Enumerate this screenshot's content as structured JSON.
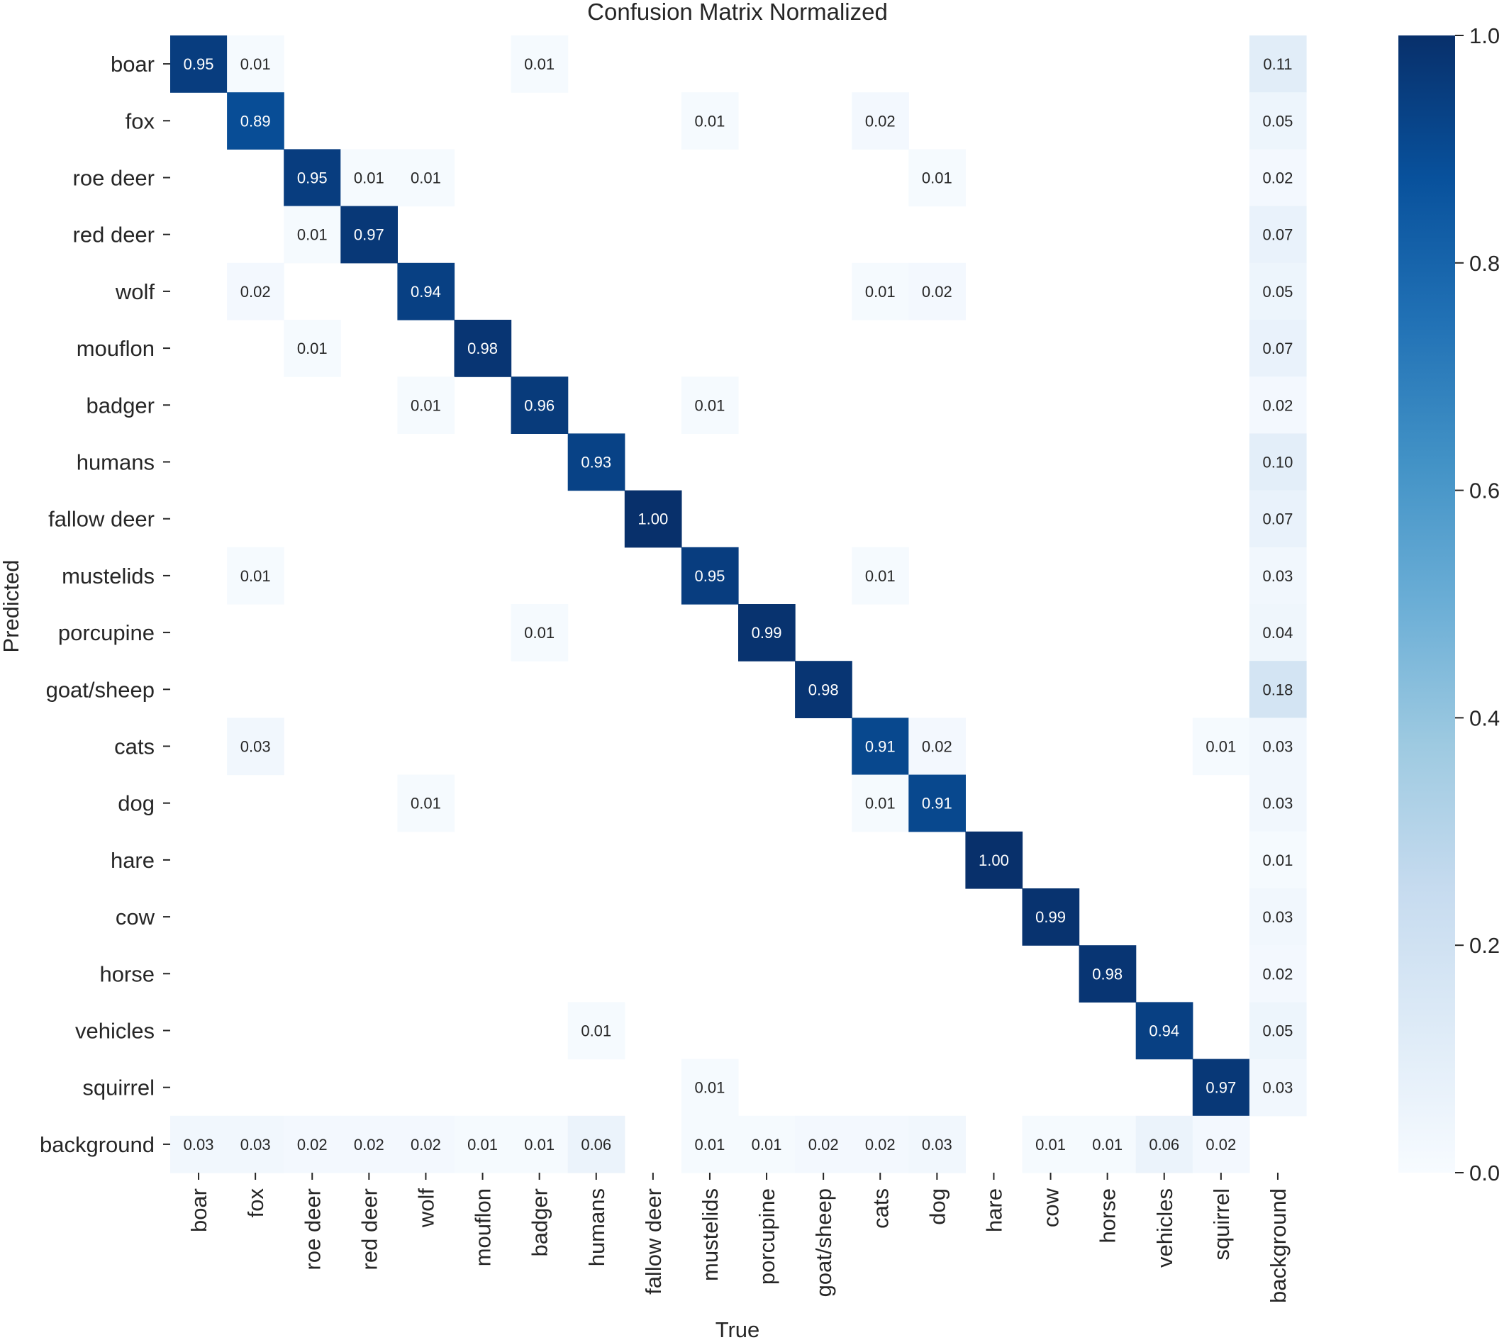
{
  "chart_data": {
    "type": "heatmap",
    "title": "Confusion Matrix Normalized",
    "xlabel": "True",
    "ylabel": "Predicted",
    "row_labels": [
      "boar",
      "fox",
      "roe deer",
      "red deer",
      "wolf",
      "mouflon",
      "badger",
      "humans",
      "fallow deer",
      "mustelids",
      "porcupine",
      "goat/sheep",
      "cats",
      "dog",
      "hare",
      "cow",
      "horse",
      "vehicles",
      "squirrel",
      "background"
    ],
    "col_labels": [
      "boar",
      "fox",
      "roe deer",
      "red deer",
      "wolf",
      "mouflon",
      "badger",
      "humans",
      "fallow deer",
      "mustelids",
      "porcupine",
      "goat/sheep",
      "cats",
      "dog",
      "hare",
      "cow",
      "horse",
      "vehicles",
      "squirrel",
      "background"
    ],
    "values": [
      [
        0.95,
        0.01,
        null,
        null,
        null,
        null,
        0.01,
        null,
        null,
        null,
        null,
        null,
        null,
        null,
        null,
        null,
        null,
        null,
        null,
        0.11
      ],
      [
        null,
        0.89,
        null,
        null,
        null,
        null,
        null,
        null,
        null,
        0.01,
        null,
        null,
        0.02,
        null,
        null,
        null,
        null,
        null,
        null,
        0.05
      ],
      [
        null,
        null,
        0.95,
        0.01,
        0.01,
        null,
        null,
        null,
        null,
        null,
        null,
        null,
        null,
        0.01,
        null,
        null,
        null,
        null,
        null,
        0.02
      ],
      [
        null,
        null,
        0.01,
        0.97,
        null,
        null,
        null,
        null,
        null,
        null,
        null,
        null,
        null,
        null,
        null,
        null,
        null,
        null,
        null,
        0.07
      ],
      [
        null,
        0.02,
        null,
        null,
        0.94,
        null,
        null,
        null,
        null,
        null,
        null,
        null,
        0.01,
        0.02,
        null,
        null,
        null,
        null,
        null,
        0.05
      ],
      [
        null,
        null,
        0.01,
        null,
        null,
        0.98,
        null,
        null,
        null,
        null,
        null,
        null,
        null,
        null,
        null,
        null,
        null,
        null,
        null,
        0.07
      ],
      [
        null,
        null,
        null,
        null,
        0.01,
        null,
        0.96,
        null,
        null,
        0.01,
        null,
        null,
        null,
        null,
        null,
        null,
        null,
        null,
        null,
        0.02
      ],
      [
        null,
        null,
        null,
        null,
        null,
        null,
        null,
        0.93,
        null,
        null,
        null,
        null,
        null,
        null,
        null,
        null,
        null,
        null,
        null,
        0.1
      ],
      [
        null,
        null,
        null,
        null,
        null,
        null,
        null,
        null,
        1.0,
        null,
        null,
        null,
        null,
        null,
        null,
        null,
        null,
        null,
        null,
        0.07
      ],
      [
        null,
        0.01,
        null,
        null,
        null,
        null,
        null,
        null,
        null,
        0.95,
        null,
        null,
        0.01,
        null,
        null,
        null,
        null,
        null,
        null,
        0.03
      ],
      [
        null,
        null,
        null,
        null,
        null,
        null,
        0.01,
        null,
        null,
        null,
        0.99,
        null,
        null,
        null,
        null,
        null,
        null,
        null,
        null,
        0.04
      ],
      [
        null,
        null,
        null,
        null,
        null,
        null,
        null,
        null,
        null,
        null,
        null,
        0.98,
        null,
        null,
        null,
        null,
        null,
        null,
        null,
        0.18
      ],
      [
        null,
        0.03,
        null,
        null,
        null,
        null,
        null,
        null,
        null,
        null,
        null,
        null,
        0.91,
        0.02,
        null,
        null,
        null,
        null,
        0.01,
        0.03
      ],
      [
        null,
        null,
        null,
        null,
        0.01,
        null,
        null,
        null,
        null,
        null,
        null,
        null,
        0.01,
        0.91,
        null,
        null,
        null,
        null,
        null,
        0.03
      ],
      [
        null,
        null,
        null,
        null,
        null,
        null,
        null,
        null,
        null,
        null,
        null,
        null,
        null,
        null,
        1.0,
        null,
        null,
        null,
        null,
        0.01
      ],
      [
        null,
        null,
        null,
        null,
        null,
        null,
        null,
        null,
        null,
        null,
        null,
        null,
        null,
        null,
        null,
        0.99,
        null,
        null,
        null,
        0.03
      ],
      [
        null,
        null,
        null,
        null,
        null,
        null,
        null,
        null,
        null,
        null,
        null,
        null,
        null,
        null,
        null,
        null,
        0.98,
        null,
        null,
        0.02
      ],
      [
        null,
        null,
        null,
        null,
        null,
        null,
        null,
        0.01,
        null,
        null,
        null,
        null,
        null,
        null,
        null,
        null,
        null,
        0.94,
        null,
        0.05
      ],
      [
        null,
        null,
        null,
        null,
        null,
        null,
        null,
        null,
        null,
        0.01,
        null,
        null,
        null,
        null,
        null,
        null,
        null,
        null,
        0.97,
        0.03
      ],
      [
        0.03,
        0.03,
        0.02,
        0.02,
        0.02,
        0.01,
        0.01,
        0.06,
        null,
        0.01,
        0.01,
        0.02,
        0.02,
        0.03,
        null,
        0.01,
        0.01,
        0.06,
        0.02,
        null
      ]
    ],
    "vmin": 0.0,
    "vmax": 1.0,
    "colormap": "Blues",
    "colorbar_ticks": [
      "0.0",
      "0.2",
      "0.4",
      "0.6",
      "0.8",
      "1.0"
    ],
    "grid": false
  }
}
